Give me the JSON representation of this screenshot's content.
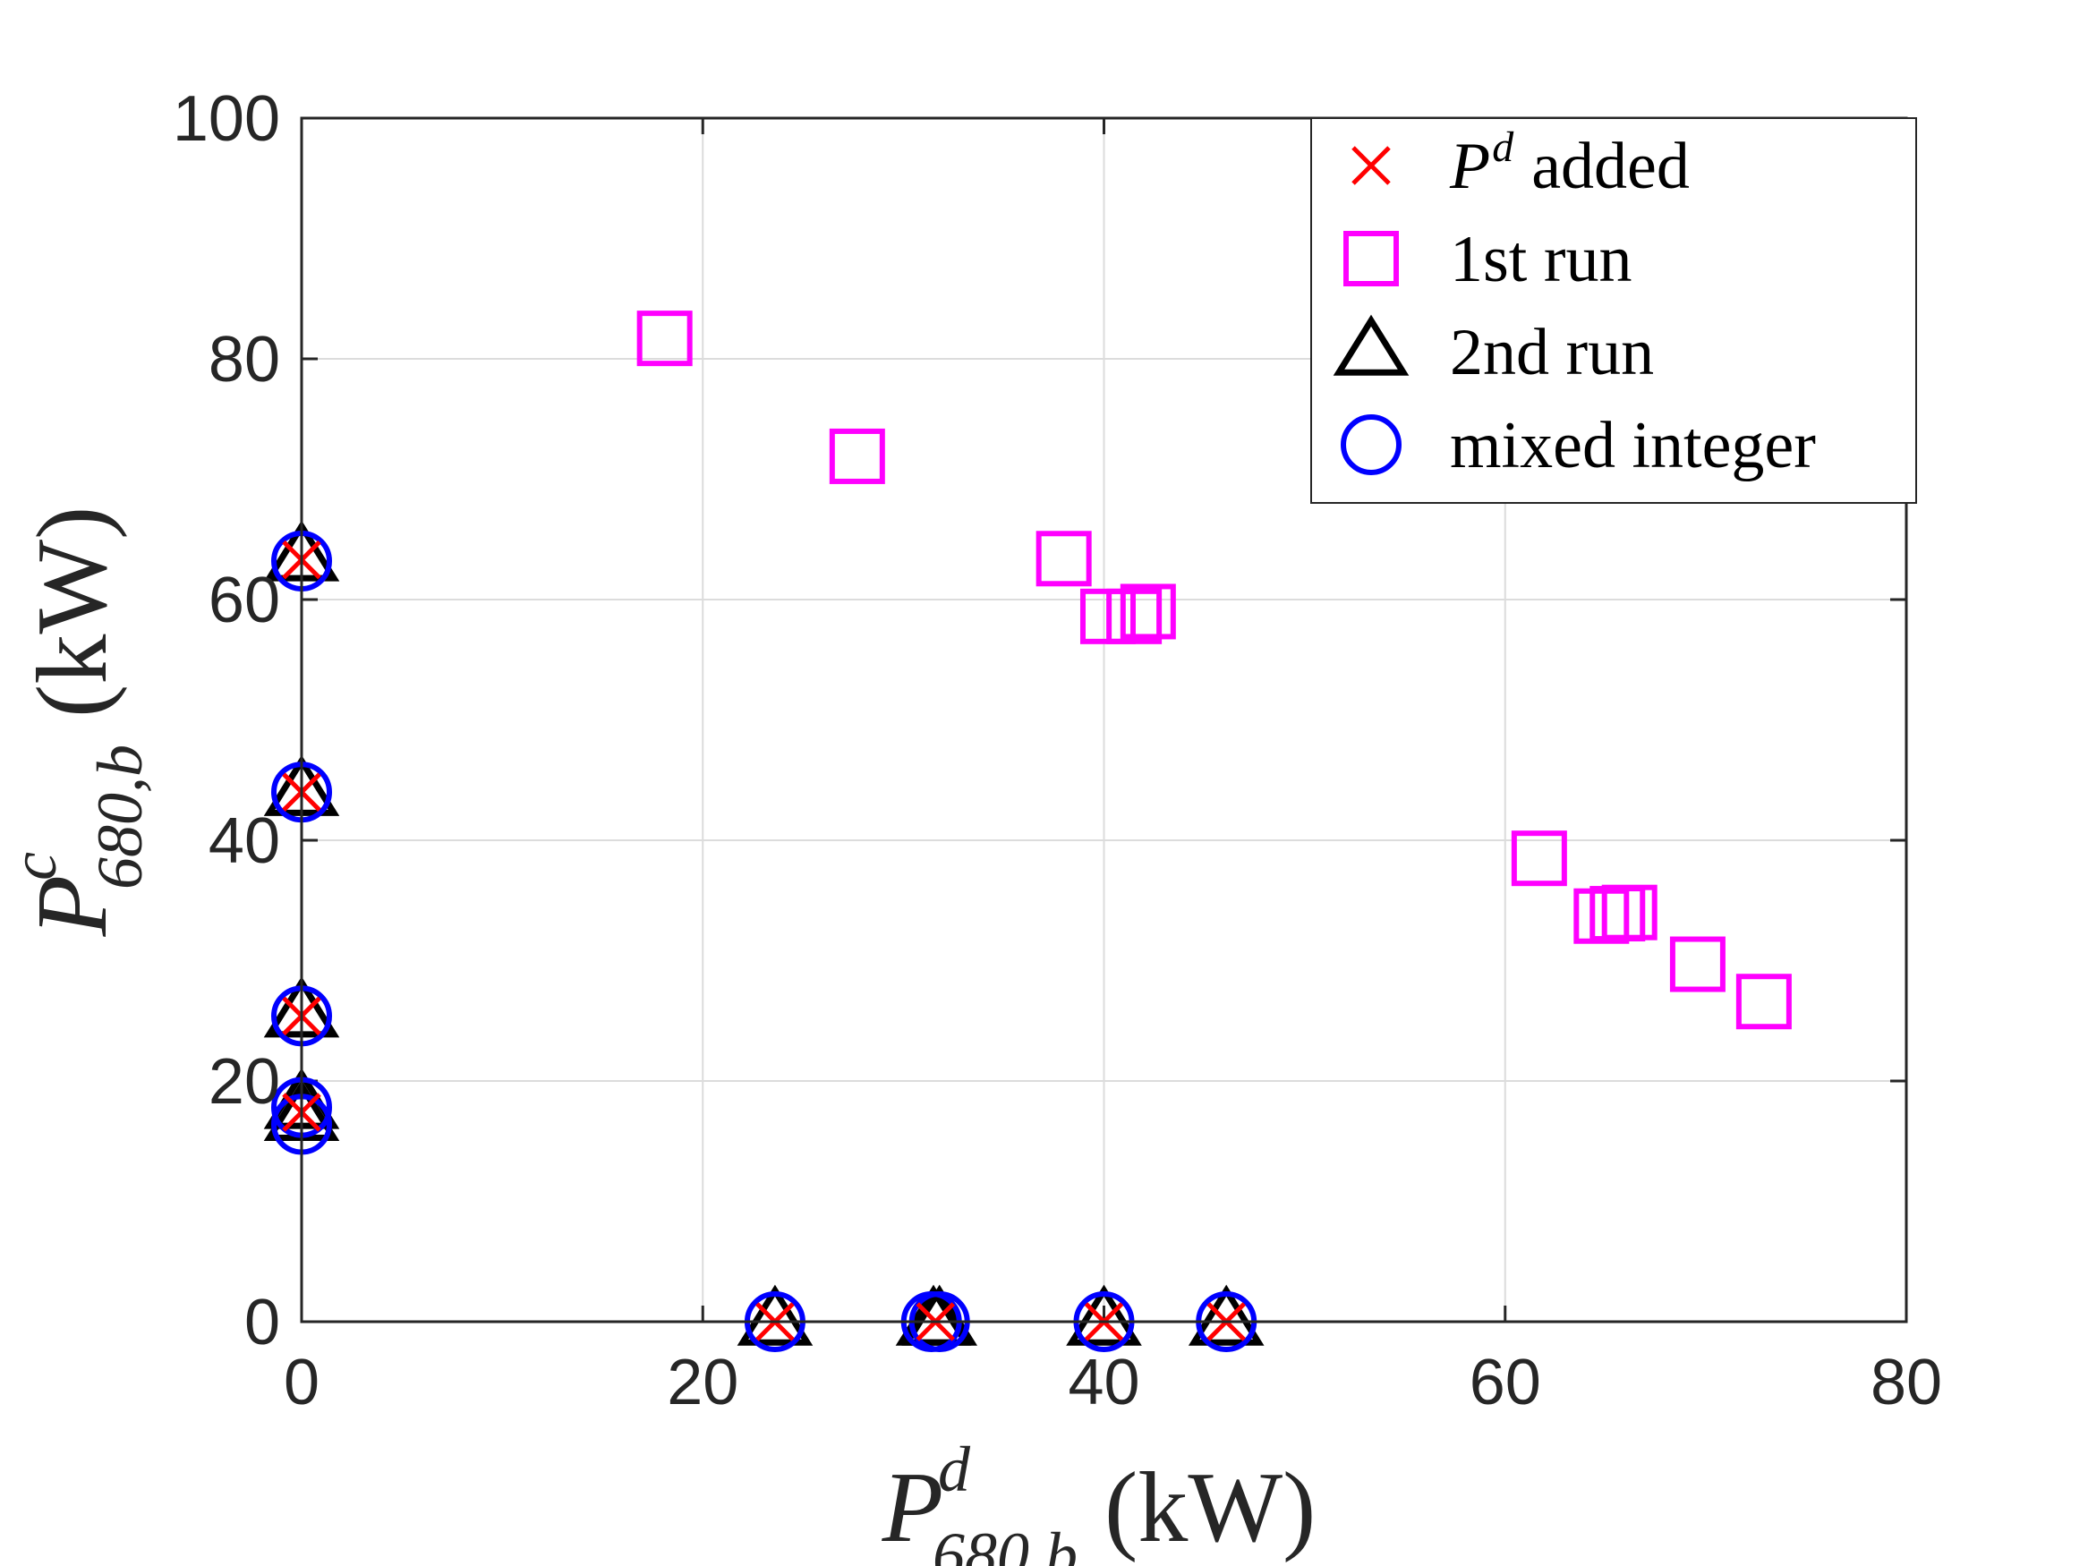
{
  "chart_data": {
    "type": "scatter",
    "title": "",
    "xlabel": {
      "symbol": "P",
      "superscript": "d",
      "subscript": "680,b",
      "unit": "(kW)"
    },
    "ylabel": {
      "symbol": "P",
      "superscript": "c",
      "subscript": "680,b",
      "unit": "(kW)"
    },
    "xlim": [
      0,
      80
    ],
    "ylim": [
      0,
      100
    ],
    "xticks": [
      0,
      20,
      40,
      60,
      80
    ],
    "yticks": [
      0,
      20,
      40,
      60,
      80,
      100
    ],
    "xtick_labels": [
      "0",
      "20",
      "40",
      "60",
      "80"
    ],
    "ytick_labels": [
      "0",
      "20",
      "40",
      "60",
      "80",
      "100"
    ],
    "grid": true,
    "legend_position": "top-right",
    "series": [
      {
        "name": "1st run",
        "label": "1st run",
        "marker": "square",
        "color": "#ff00ff",
        "points": [
          {
            "x": 18.1,
            "y": 81.7
          },
          {
            "x": 27.7,
            "y": 71.9
          },
          {
            "x": 38.0,
            "y": 63.4
          },
          {
            "x": 40.2,
            "y": 58.6
          },
          {
            "x": 41.5,
            "y": 58.6
          },
          {
            "x": 42.2,
            "y": 59.0
          },
          {
            "x": 61.7,
            "y": 38.5
          },
          {
            "x": 64.8,
            "y": 33.7
          },
          {
            "x": 65.6,
            "y": 33.9
          },
          {
            "x": 66.2,
            "y": 34.0
          },
          {
            "x": 69.6,
            "y": 29.7
          },
          {
            "x": 72.9,
            "y": 26.6
          }
        ]
      },
      {
        "name": "2nd run",
        "label": "2nd run",
        "marker": "triangle",
        "color": "#000000",
        "points": [
          {
            "x": 0,
            "y": 63.5
          },
          {
            "x": 0,
            "y": 44.0
          },
          {
            "x": 0,
            "y": 25.6
          },
          {
            "x": 0,
            "y": 18.0
          },
          {
            "x": 0,
            "y": 17.0
          },
          {
            "x": 23.6,
            "y": 0
          },
          {
            "x": 31.5,
            "y": 0
          },
          {
            "x": 31.8,
            "y": 0
          },
          {
            "x": 40.0,
            "y": 0
          },
          {
            "x": 46.1,
            "y": 0
          }
        ]
      },
      {
        "name": "mixed integer",
        "label": "mixed integer",
        "marker": "circle",
        "color": "#0000ff",
        "points": [
          {
            "x": 0,
            "y": 63.2
          },
          {
            "x": 0,
            "y": 44.0
          },
          {
            "x": 0,
            "y": 25.4
          },
          {
            "x": 0,
            "y": 17.8
          },
          {
            "x": 0,
            "y": 16.4
          },
          {
            "x": 23.6,
            "y": 0
          },
          {
            "x": 31.4,
            "y": 0
          },
          {
            "x": 31.8,
            "y": 0
          },
          {
            "x": 40.0,
            "y": 0
          },
          {
            "x": 46.1,
            "y": 0
          }
        ]
      },
      {
        "name": "Pd added",
        "label_symbol": "P",
        "label_superscript": "d",
        "label_text": "added",
        "marker": "x",
        "color": "#ff0000",
        "points": [
          {
            "x": 0,
            "y": 63.3
          },
          {
            "x": 0,
            "y": 44.0
          },
          {
            "x": 0,
            "y": 25.4
          },
          {
            "x": 0,
            "y": 17.4
          },
          {
            "x": 23.6,
            "y": 0
          },
          {
            "x": 31.6,
            "y": 0
          },
          {
            "x": 40.0,
            "y": 0
          },
          {
            "x": 46.1,
            "y": 0
          }
        ]
      }
    ]
  }
}
